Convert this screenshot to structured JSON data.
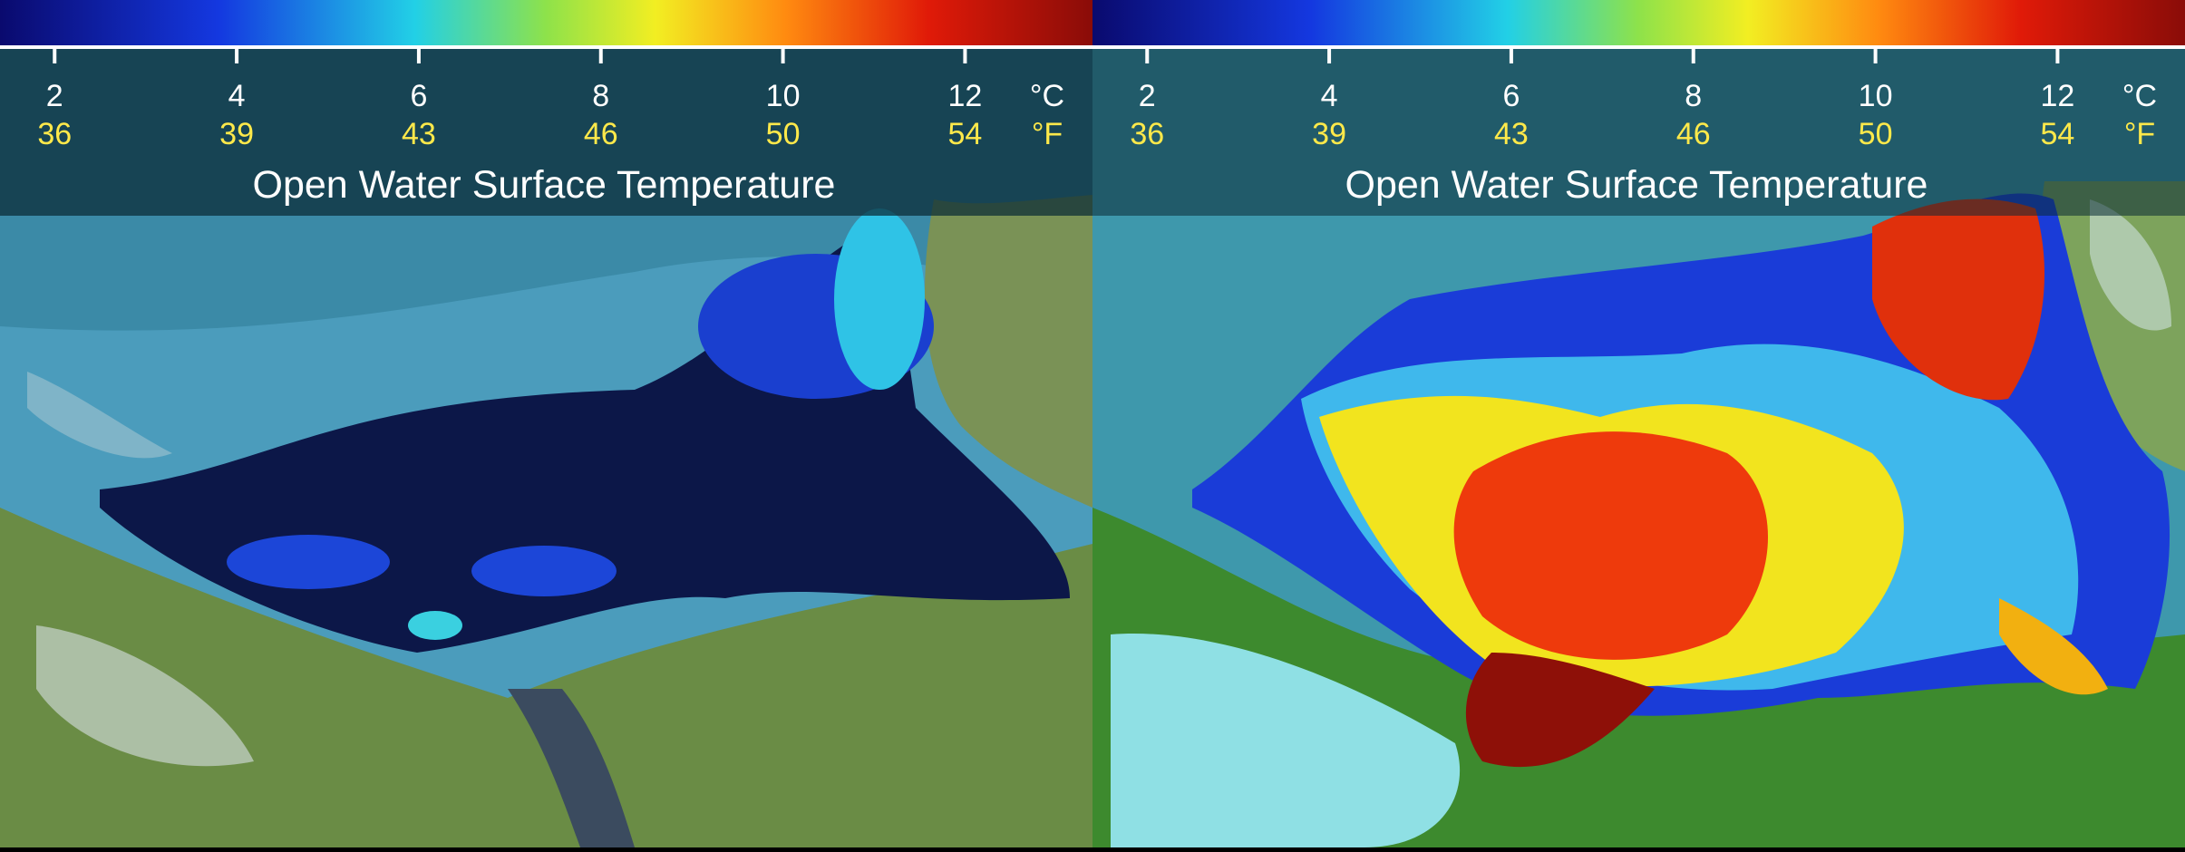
{
  "panels": [
    {
      "title": "Open Water Surface Temperature",
      "colorbar": {
        "clim": [
          1.4,
          13.4
        ],
        "celsius_ticks": [
          2,
          4,
          6,
          8,
          10,
          12
        ],
        "fahrenheit_labels": [
          "36",
          "39",
          "43",
          "46",
          "50",
          "54"
        ],
        "celsius_unit": "°C",
        "fahrenheit_unit": "°F"
      }
    },
    {
      "title": "Open Water Surface Temperature",
      "colorbar": {
        "clim": [
          1.4,
          13.4
        ],
        "celsius_ticks": [
          2,
          4,
          6,
          8,
          10,
          12
        ],
        "fahrenheit_labels": [
          "36",
          "39",
          "43",
          "46",
          "50",
          "54"
        ],
        "celsius_unit": "°C",
        "fahrenheit_unit": "°F"
      }
    }
  ]
}
